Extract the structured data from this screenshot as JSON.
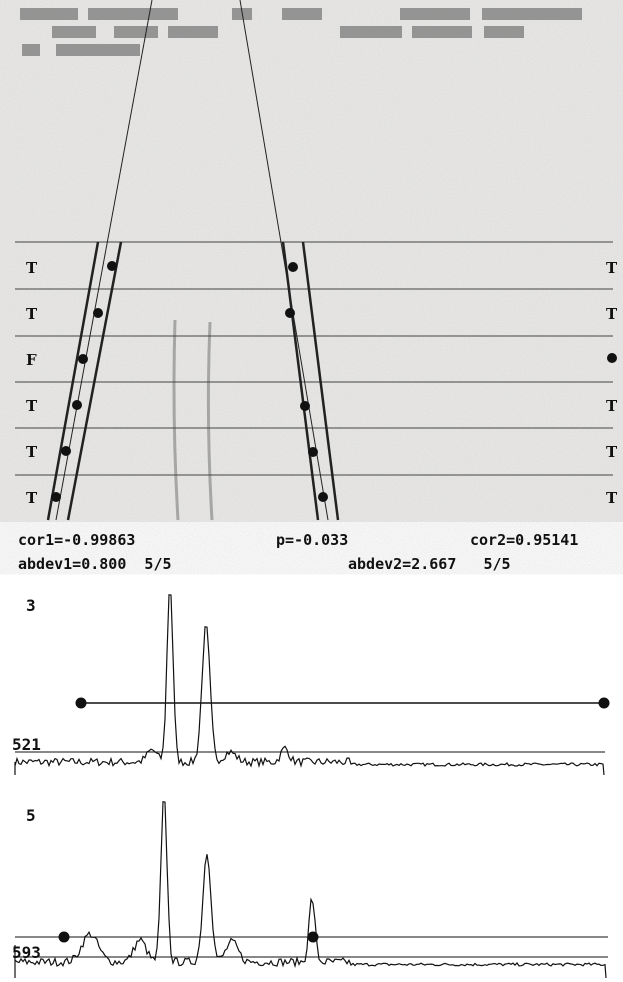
{
  "gel": {
    "left_labels": [
      "T",
      "T",
      "F",
      "T",
      "T",
      "T"
    ],
    "right_labels": [
      "T",
      "T",
      "T",
      "T",
      "T"
    ]
  },
  "stats": {
    "cor1": "cor1=-0.99863",
    "p": "p=-0.033",
    "cor2": "cor2=0.95141",
    "abdev1": "abdev1=0.800  5/5",
    "abdev2": "abdev2=2.667   5/5"
  },
  "profiles": [
    {
      "label": "3",
      "baseline": "521"
    },
    {
      "label": "5",
      "baseline": "593"
    }
  ]
}
